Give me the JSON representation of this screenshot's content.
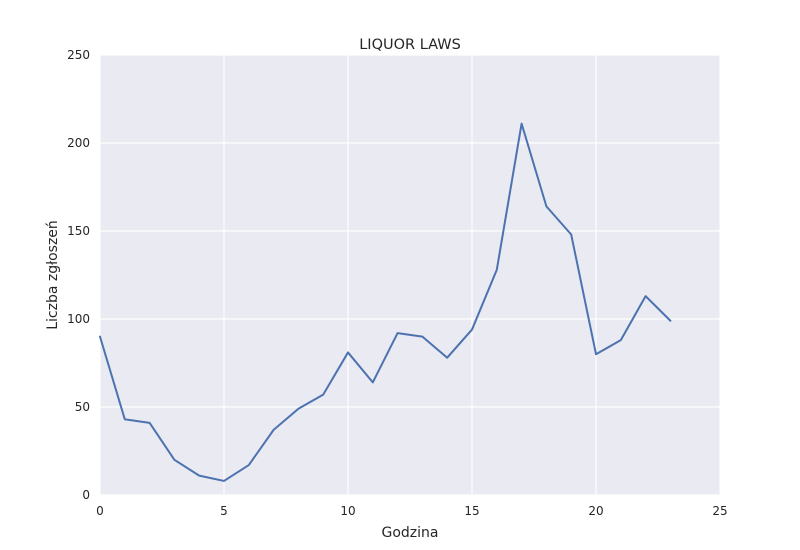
{
  "chart_data": {
    "type": "line",
    "title": "LIQUOR LAWS",
    "xlabel": "Godzina",
    "ylabel": "Liczba zgłoszeń",
    "xlim": [
      0,
      25
    ],
    "ylim": [
      0,
      250
    ],
    "x_ticks": [
      0,
      5,
      10,
      15,
      20,
      25
    ],
    "y_ticks": [
      0,
      50,
      100,
      150,
      200,
      250
    ],
    "grid": true,
    "colors": {
      "background": "#eaeaf2",
      "grid": "#ffffff",
      "line": "#4c72b0"
    },
    "x": [
      0,
      1,
      2,
      3,
      4,
      5,
      6,
      7,
      8,
      9,
      10,
      11,
      12,
      13,
      14,
      15,
      16,
      17,
      18,
      19,
      20,
      21,
      22,
      23
    ],
    "series": [
      {
        "values": [
          90,
          43,
          41,
          20,
          11,
          8,
          17,
          37,
          49,
          57,
          81,
          64,
          92,
          90,
          78,
          94,
          128,
          211,
          164,
          148,
          80,
          88,
          113,
          99
        ]
      }
    ]
  }
}
